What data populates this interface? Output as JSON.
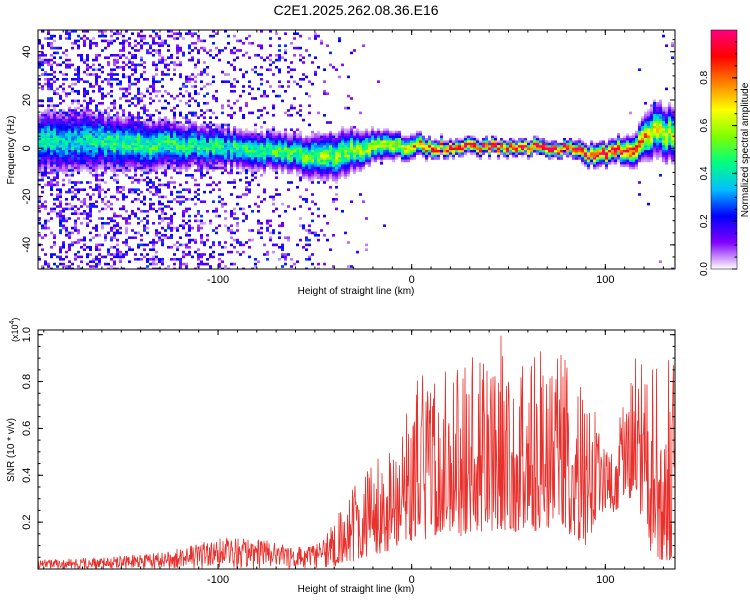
{
  "figure_title": "C2E1.2025.262.08.36.E16",
  "chart_data": [
    {
      "type": "heatmap",
      "title": "C2E1.2025.262.08.36.E16",
      "xlabel": "Height of straight line (km)",
      "ylabel": "Frequency (Hz)",
      "xlim": [
        -193,
        136
      ],
      "ylim": [
        -50,
        49
      ],
      "x_ticks": [
        -100,
        0,
        100
      ],
      "x_tick_labels": [
        "-100",
        "0",
        "100"
      ],
      "y_ticks": [
        -40,
        -20,
        0,
        20,
        40
      ],
      "y_tick_labels": [
        "-40",
        "-20",
        "0",
        "20",
        "40"
      ],
      "grid": false,
      "colorbar": {
        "label": "Normalized spectral amplitude",
        "range": [
          0,
          1
        ],
        "ticks": [
          0.0,
          0.2,
          0.4,
          0.6,
          0.8
        ],
        "tick_labels": [
          "0.0",
          "0.2",
          "0.4",
          "0.6",
          "0.8"
        ],
        "colormap": [
          "#ffffff",
          "#8000ff",
          "#0000ff",
          "#00c0ff",
          "#00ff80",
          "#80ff00",
          "#ffff00",
          "#ff8000",
          "#ff0000",
          "#ff0080"
        ]
      },
      "ridge": {
        "description_points_height_km": [
          -170,
          -150,
          -120,
          -90,
          -60,
          -45,
          -35,
          -20,
          0,
          20,
          60,
          80,
          95,
          105,
          115,
          125,
          135
        ],
        "center_frequency_hz": [
          3,
          2,
          1,
          0,
          -2,
          -4,
          -2,
          1,
          1,
          0.5,
          0.5,
          0,
          -3,
          -1,
          0,
          8,
          5
        ],
        "peak_amplitude": [
          0.4,
          0.45,
          0.45,
          0.45,
          0.5,
          0.55,
          0.55,
          0.6,
          0.7,
          0.95,
          0.95,
          0.95,
          0.9,
          0.9,
          0.85,
          0.6,
          0.6
        ],
        "spread_hz": [
          8,
          7,
          6,
          5,
          5,
          6,
          6,
          4,
          3,
          2,
          2,
          2,
          3,
          3,
          4,
          7,
          7
        ],
        "noise_level": [
          0.35,
          0.35,
          0.3,
          0.18,
          0.15,
          0.08,
          0.03,
          0.01,
          0,
          0,
          0,
          0,
          0,
          0,
          0.01,
          0.02,
          0.02
        ]
      }
    },
    {
      "type": "line",
      "xlabel": "Height of straight line (km)",
      "ylabel": "SNR (10 * v/v)",
      "y_multiplier_label": "(x10",
      "y_multiplier_exponent": "4",
      "y_multiplier_close": ")",
      "xlim": [
        -193,
        136
      ],
      "ylim": [
        0,
        1.02
      ],
      "x_ticks": [
        -100,
        0,
        100
      ],
      "x_tick_labels": [
        "-100",
        "0",
        "100"
      ],
      "y_ticks": [
        0.2,
        0.4,
        0.6,
        0.8,
        1.0
      ],
      "y_tick_labels": [
        "0.2",
        "0.4",
        "0.6",
        "0.8",
        "1.0"
      ],
      "grid": false,
      "series": [
        {
          "name": "SNR",
          "color": "#e8302c",
          "envelope_x": [
            -193,
            -160,
            -130,
            -100,
            -80,
            -60,
            -50,
            -45,
            -40,
            -35,
            -30,
            -25,
            -20,
            -15,
            -10,
            -5,
            0,
            5,
            10,
            15,
            20,
            25,
            30,
            35,
            40,
            45,
            50,
            55,
            60,
            65,
            70,
            75,
            80,
            85,
            90,
            95,
            100,
            105,
            110,
            115,
            120,
            125,
            130,
            136
          ],
          "envelope_max": [
            0.04,
            0.05,
            0.07,
            0.13,
            0.13,
            0.1,
            0.1,
            0.14,
            0.2,
            0.28,
            0.35,
            0.48,
            0.5,
            0.5,
            0.6,
            0.72,
            0.82,
            0.86,
            0.8,
            0.9,
            0.88,
            0.85,
            0.9,
            0.92,
            0.85,
            1.0,
            0.98,
            0.9,
            0.95,
            0.95,
            0.95,
            0.98,
            0.88,
            0.86,
            0.68,
            0.7,
            0.56,
            0.58,
            0.72,
            0.9,
            0.96,
            0.92,
            0.88,
            0.95
          ],
          "envelope_min": [
            0.0,
            0.0,
            0.0,
            0.0,
            0.0,
            0.0,
            0.0,
            0.0,
            0.0,
            0.02,
            0.03,
            0.05,
            0.05,
            0.07,
            0.08,
            0.1,
            0.12,
            0.13,
            0.12,
            0.15,
            0.16,
            0.14,
            0.15,
            0.16,
            0.15,
            0.17,
            0.16,
            0.16,
            0.18,
            0.15,
            0.16,
            0.18,
            0.14,
            0.13,
            0.1,
            0.17,
            0.26,
            0.24,
            0.3,
            0.3,
            0.15,
            0.04,
            0.04,
            0.03
          ]
        }
      ]
    }
  ]
}
